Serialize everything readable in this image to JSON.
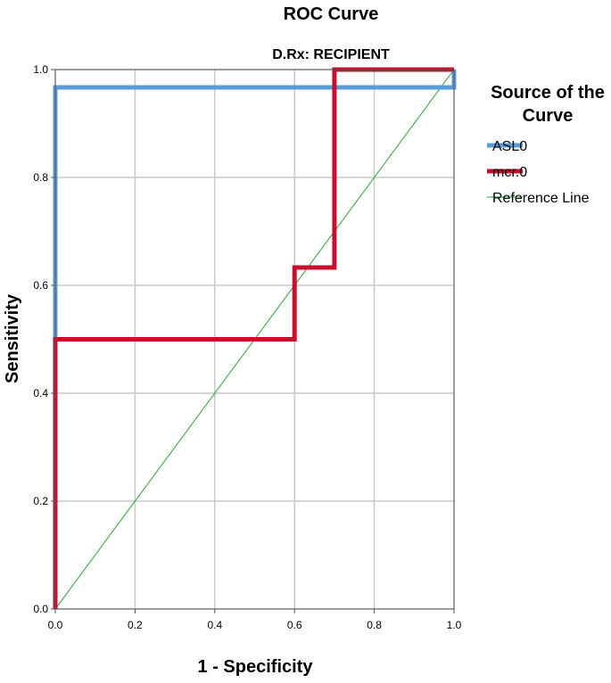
{
  "chart_data": {
    "type": "line",
    "title": "ROC Curve",
    "subtitle": "D.Rx: RECIPIENT",
    "xlabel": "1 - Specificity",
    "ylabel": "Sensitivity",
    "xlim": [
      0,
      1
    ],
    "ylim": [
      0,
      1
    ],
    "xticks": [
      "0.0",
      "0.2",
      "0.4",
      "0.6",
      "0.8",
      "1.0"
    ],
    "yticks": [
      "0.0",
      "0.2",
      "0.4",
      "0.6",
      "0.8",
      "1.0"
    ],
    "grid": true,
    "legend": {
      "title_lines": [
        "Source of the",
        "Curve"
      ],
      "placement": "right"
    },
    "series": [
      {
        "name": "ASL0",
        "color": "#5b9bd5",
        "x": [
          0,
          0,
          1,
          1
        ],
        "y": [
          0,
          0.967,
          0.967,
          1
        ]
      },
      {
        "name": "mcr.0",
        "color": "#c8102e",
        "x": [
          0,
          0,
          0.6,
          0.6,
          0.7,
          0.7,
          1
        ],
        "y": [
          0,
          0.5,
          0.5,
          0.633,
          0.633,
          1,
          1
        ]
      },
      {
        "name": "Reference Line",
        "color": "#4caf50",
        "x": [
          0,
          1
        ],
        "y": [
          0,
          1
        ]
      }
    ]
  }
}
